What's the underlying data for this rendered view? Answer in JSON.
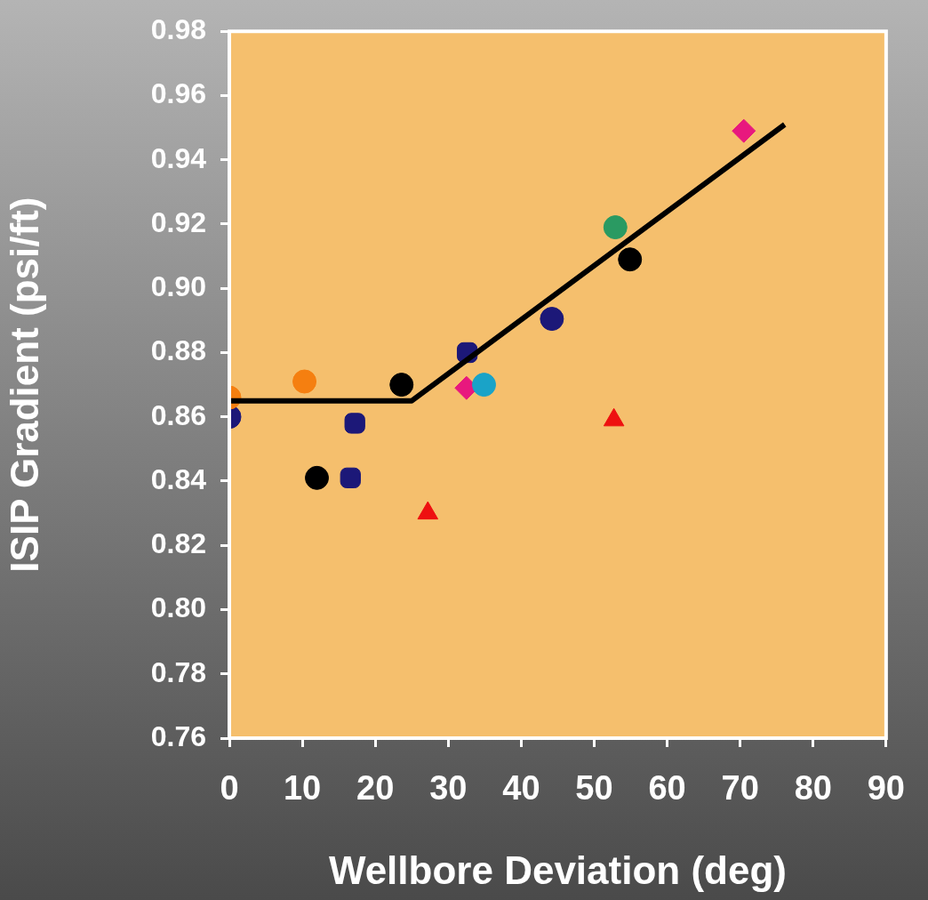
{
  "chart_data": {
    "type": "scatter",
    "xlabel": "Wellbore Deviation (deg)",
    "ylabel": "ISIP Gradient (psi/ft)",
    "xlim": [
      0,
      90
    ],
    "xticks": [
      0,
      10,
      20,
      30,
      40,
      50,
      60,
      70,
      80,
      90
    ],
    "ylim": [
      0.76,
      0.98
    ],
    "yticks": [
      0.76,
      0.78,
      {
        "value": 0.8,
        "label": "0.80"
      },
      0.82,
      0.84,
      0.86,
      0.88,
      {
        "value": 0.9,
        "label": "0.90"
      },
      0.92,
      0.94,
      0.96,
      0.98
    ],
    "grid": false,
    "legend": false,
    "series": [
      {
        "type": "line",
        "color": "#000000",
        "marker": "none",
        "line_style": "solid",
        "x": [
          0,
          25,
          76.1
        ],
        "values": [
          0.865,
          0.865,
          0.951
        ]
      },
      {
        "color": "#f57f10",
        "marker": "circle",
        "x": [
          0,
          10.3
        ],
        "values": [
          0.866,
          0.871
        ]
      },
      {
        "color": "#1c1878",
        "marker": "circle",
        "x": [
          0,
          44.2
        ],
        "values": [
          0.86,
          0.8905
        ]
      },
      {
        "color": "#1c1878",
        "marker": "square",
        "x": [
          17.2,
          16.6,
          32.6
        ],
        "values": [
          0.858,
          0.841,
          0.88
        ]
      },
      {
        "color": "#000000",
        "marker": "circle",
        "x": [
          12,
          23.6,
          54.9
        ],
        "values": [
          0.841,
          0.87,
          0.909
        ]
      },
      {
        "color": "#1aa3c8",
        "marker": "circle",
        "x": [
          34.9
        ],
        "values": [
          0.87
        ]
      },
      {
        "color": "#2a9a62",
        "marker": "circle",
        "x": [
          52.9
        ],
        "values": [
          0.919
        ]
      },
      {
        "color": "#e8187e",
        "marker": "diamond",
        "x": [
          32.5,
          70.5
        ],
        "values": [
          0.869,
          0.949
        ]
      },
      {
        "color": "#ee1010",
        "marker": "triangle",
        "x": [
          27.2,
          52.7
        ],
        "values": [
          0.83,
          0.859
        ]
      }
    ]
  }
}
